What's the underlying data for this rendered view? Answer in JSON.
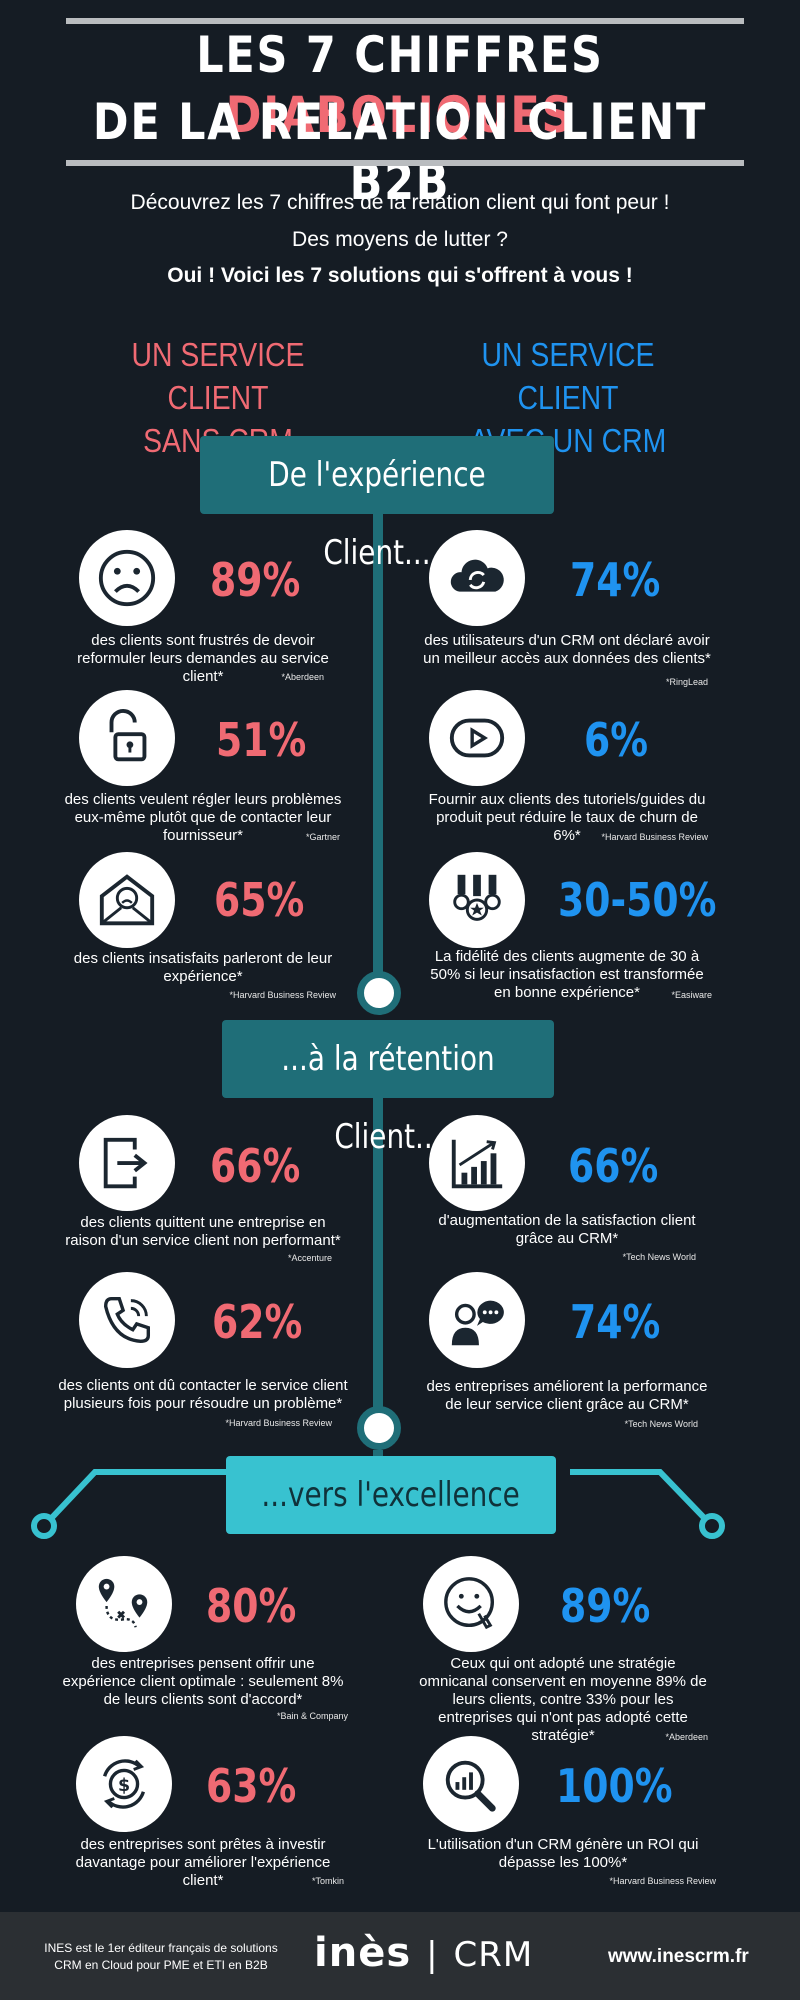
{
  "header": {
    "title_line1_prefix": "LES 7 CHIFFRES ",
    "title_line1_highlight": "DIABOLIQUES",
    "title_line2": "DE LA RELATION CLIENT B2B"
  },
  "intro": {
    "line1": "Découvrez les 7 chiffres de la relation client qui font peur !",
    "line2": "Des moyens de lutter ?",
    "line3": "Oui ! Voici les 7 solutions qui s'offrent à vous !"
  },
  "columns": {
    "left_l1": "UN SERVICE CLIENT",
    "left_l2": "SANS CRM",
    "right_l1": "UN SERVICE CLIENT",
    "right_l2": "AVEC UN CRM"
  },
  "sections": {
    "s1": "De l'expérience Client...",
    "s2": "...à la rétention Client...",
    "s3": "...vers l'excellence"
  },
  "stats": {
    "l1": {
      "value": "89%",
      "text": "des clients sont frustrés de devoir reformuler leurs demandes au service client*",
      "source": "*Aberdeen"
    },
    "l2": {
      "value": "51%",
      "text": "des clients veulent régler leurs problèmes eux-même plutôt que de contacter leur fournisseur*",
      "source": "*Gartner"
    },
    "l3": {
      "value": "65%",
      "text": "des clients insatisfaits parleront de leur expérience*",
      "source": "*Harvard Business Review"
    },
    "r1": {
      "value": "74%",
      "text": "des utilisateurs d'un CRM ont déclaré avoir un meilleur accès aux données des clients*",
      "source": "*RingLead"
    },
    "r2": {
      "value": "6%",
      "text": "Fournir aux clients des tutoriels/guides du produit peut réduire le taux de churn de 6%*",
      "source": "*Harvard Business Review"
    },
    "r3": {
      "value": "30-50%",
      "text": "La fidélité des clients augmente de 30 à 50% si leur insatisfaction est transformée en bonne expérience*",
      "source": "*Easiware"
    },
    "l4": {
      "value": "66%",
      "text": "des clients quittent une entreprise en raison d'un service client non performant*",
      "source": "*Accenture"
    },
    "l5": {
      "value": "62%",
      "text": "des clients ont dû contacter le service client plusieurs fois pour résoudre un problème*",
      "source": "*Harvard Business Review"
    },
    "r4": {
      "value": "66%",
      "text": "d'augmentation de la satisfaction client grâce au CRM*",
      "source": "*Tech News World"
    },
    "r5": {
      "value": "74%",
      "text": "des entreprises améliorent la performance de leur service client grâce au CRM*",
      "source": "*Tech News World"
    },
    "l6": {
      "value": "80%",
      "text": "des entreprises pensent offrir une expérience client optimale : seulement 8% de leurs clients sont d'accord*",
      "source": "*Bain & Company"
    },
    "l7": {
      "value": "63%",
      "text": "des entreprises sont prêtes à investir davantage pour améliorer l'expérience client*",
      "source": "*Tomkin"
    },
    "r6": {
      "value": "89%",
      "text": "Ceux qui ont adopté une stratégie omnicanal conservent en moyenne 89% de leurs clients, contre 33% pour les entreprises qui n'ont pas adopté cette stratégie*",
      "source": "*Aberdeen"
    },
    "r7": {
      "value": "100%",
      "text": "L'utilisation d'un CRM génère un ROI qui dépasse les 100%*",
      "source": "*Harvard Business Review"
    }
  },
  "footer": {
    "about_l1": "INES est le 1er éditeur français de solutions",
    "about_l2": "CRM en Cloud pour PME et ETI en B2B",
    "logo_main": "inès",
    "logo_sep": "|",
    "logo_crm": "CRM",
    "website": "www.inescrm.fr"
  },
  "colors": {
    "red": "#f06a73",
    "blue": "#1f93f0",
    "teal": "#1f6e78",
    "cyan": "#38c2d0",
    "background": "#151c24"
  },
  "icons": [
    "sad-face-icon",
    "cloud-sync-icon",
    "open-padlock-icon",
    "play-button-icon",
    "sad-envelope-icon",
    "medals-icon",
    "exit-door-icon",
    "rising-bar-chart-icon",
    "phone-call-icon",
    "speech-person-icon",
    "map-route-icon",
    "happy-face-icon",
    "money-cycle-icon",
    "magnifier-chart-icon"
  ]
}
